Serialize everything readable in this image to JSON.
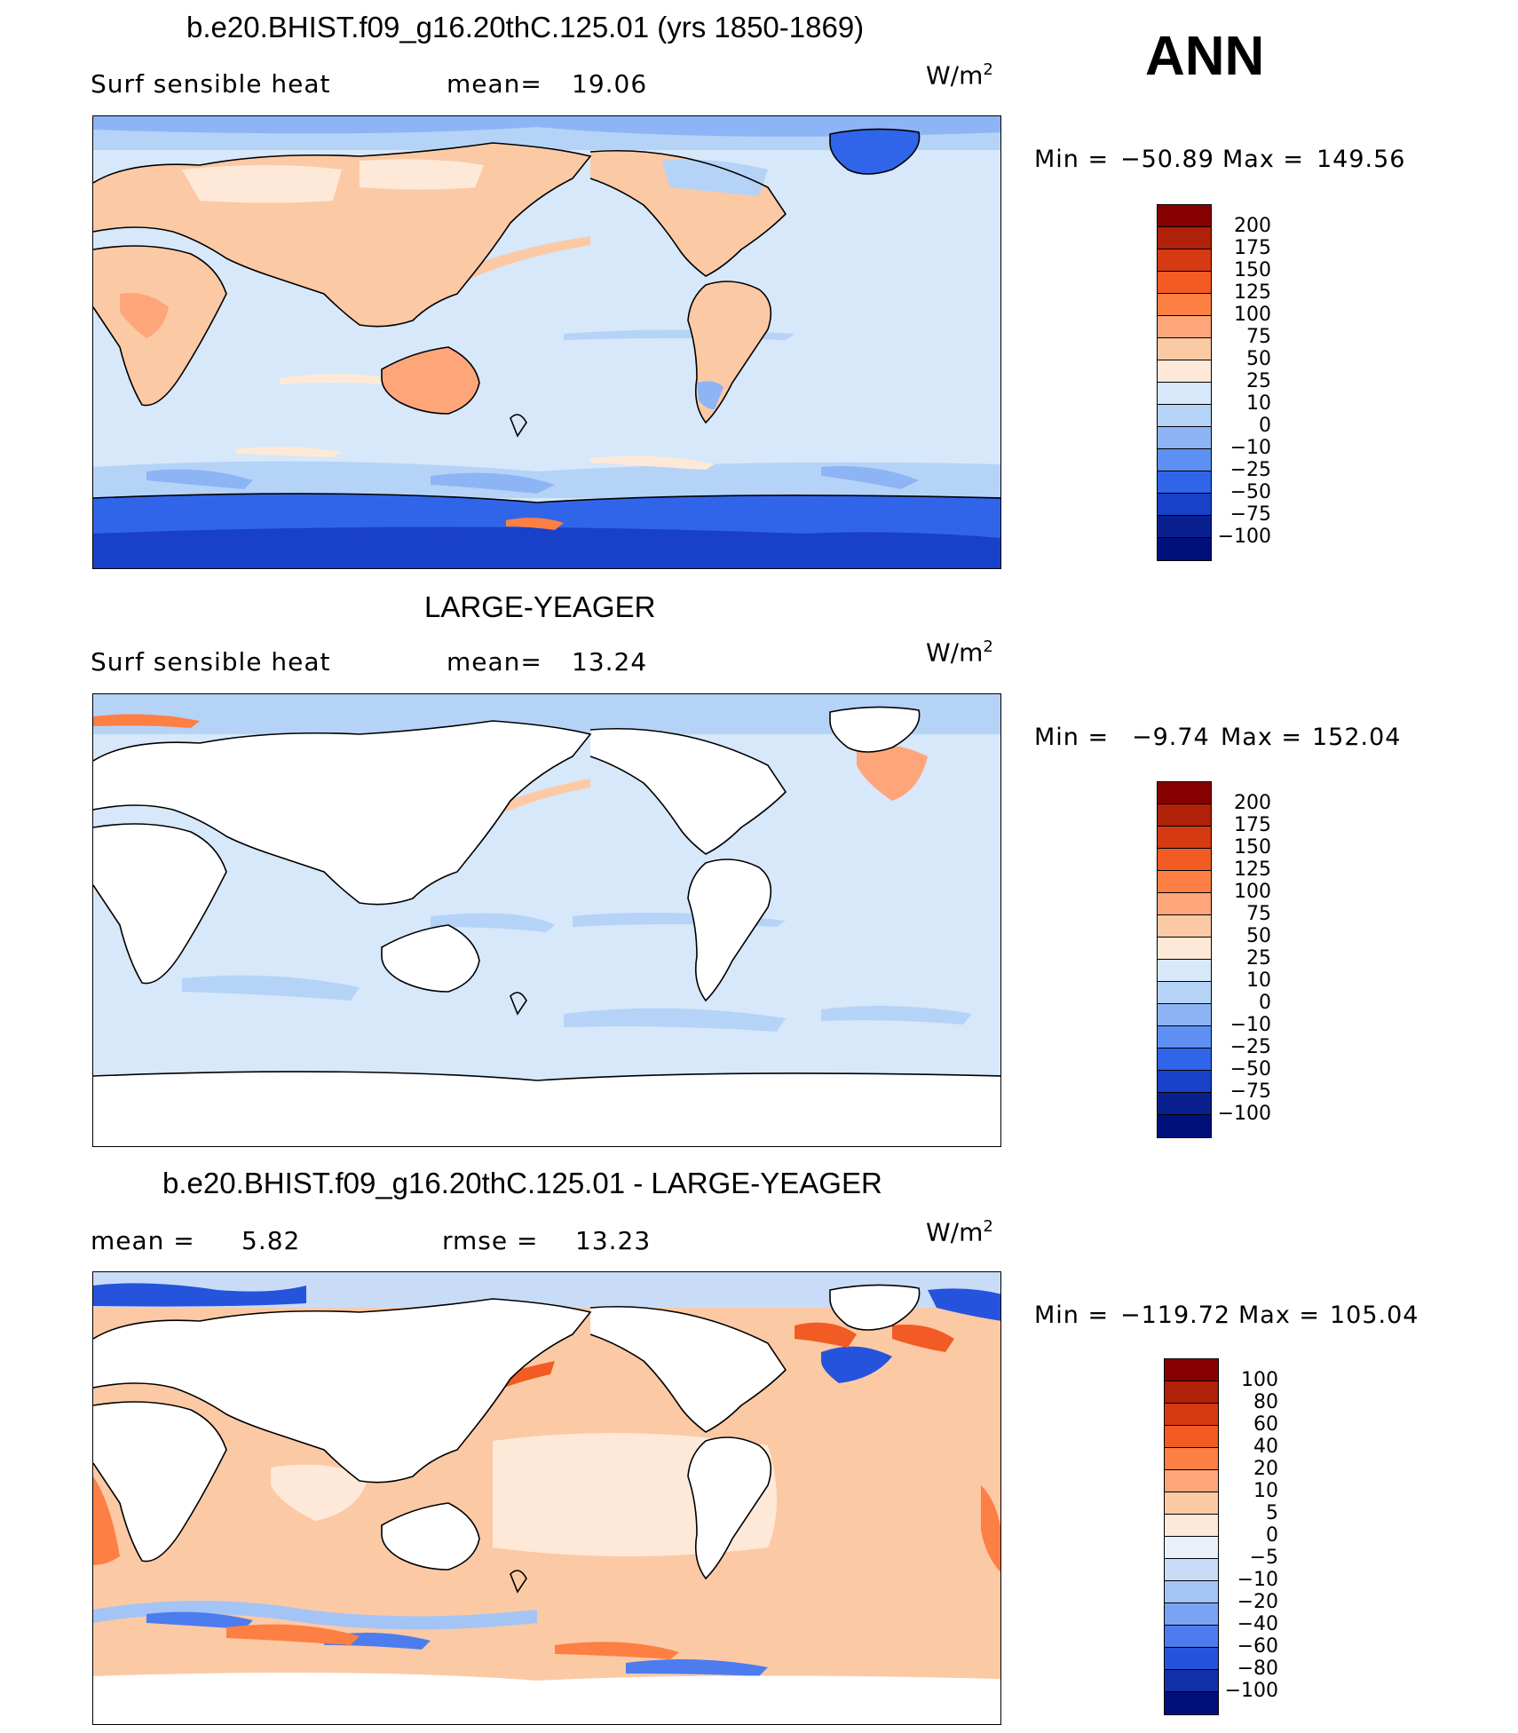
{
  "season": "ANN",
  "units_base": "W/m",
  "units_exp": "2",
  "panels": [
    {
      "title": "b.e20.BHIST.f09_g16.20thC.125.01 (yrs 1850-1869)",
      "var_label": "Surf  sensible  heat",
      "stat_label": "mean=",
      "stat_value": "19.06",
      "min_label": "Min  =",
      "min_value": "−50.89",
      "max_label": "Max  =",
      "max_value": "149.56",
      "type": "model",
      "levels": [
        "200",
        "175",
        "150",
        "125",
        "100",
        "75",
        "50",
        "25",
        "10",
        "0",
        "−10",
        "−25",
        "−50",
        "−75",
        "−100"
      ],
      "colors": [
        "#870000",
        "#b0210a",
        "#d63a12",
        "#f25b23",
        "#fd7f43",
        "#fea57a",
        "#fcc9a5",
        "#fee9d8",
        "#d6e8f9",
        "#b5d3f7",
        "#8db4f5",
        "#5e8ff2",
        "#3065ea",
        "#1940c9",
        "#0a208f",
        "#00107a"
      ]
    },
    {
      "title": "LARGE-YEAGER",
      "var_label": "Surf  sensible  heat",
      "stat_label": "mean=",
      "stat_value": "13.24",
      "min_label": "Min  =",
      "min_value": "−9.74",
      "max_label": "Max  =",
      "max_value": "152.04",
      "type": "obs",
      "levels": [
        "200",
        "175",
        "150",
        "125",
        "100",
        "75",
        "50",
        "25",
        "10",
        "0",
        "−10",
        "−25",
        "−50",
        "−75",
        "−100"
      ],
      "colors": [
        "#870000",
        "#b0210a",
        "#d63a12",
        "#f25b23",
        "#fd7f43",
        "#fea57a",
        "#fcc9a5",
        "#fee9d8",
        "#d6e8f9",
        "#b5d3f7",
        "#8db4f5",
        "#5e8ff2",
        "#3065ea",
        "#1940c9",
        "#0a208f",
        "#00107a"
      ]
    },
    {
      "title": "b.e20.BHIST.f09_g16.20thC.125.01 - LARGE-YEAGER",
      "var_label": "mean  =",
      "stat_label": "5.82",
      "stat_value": "",
      "rmse_label": "rmse  =",
      "rmse_value": "13.23",
      "min_label": "Min  =",
      "min_value": "−119.72",
      "max_label": "Max  =",
      "max_value": "105.04",
      "type": "diff",
      "levels": [
        "100",
        "80",
        "60",
        "40",
        "20",
        "10",
        "5",
        "0",
        "−5",
        "−10",
        "−20",
        "−40",
        "−60",
        "−80",
        "−100"
      ],
      "colors": [
        "#870000",
        "#b0210a",
        "#d63a12",
        "#f25b23",
        "#fd7f43",
        "#fea57a",
        "#fcc9a5",
        "#fee9d8",
        "#e9f1fb",
        "#c8dcf8",
        "#a4c4f6",
        "#7aa3f3",
        "#4c7cee",
        "#2553dc",
        "#1230aa",
        "#00107a"
      ]
    }
  ]
}
